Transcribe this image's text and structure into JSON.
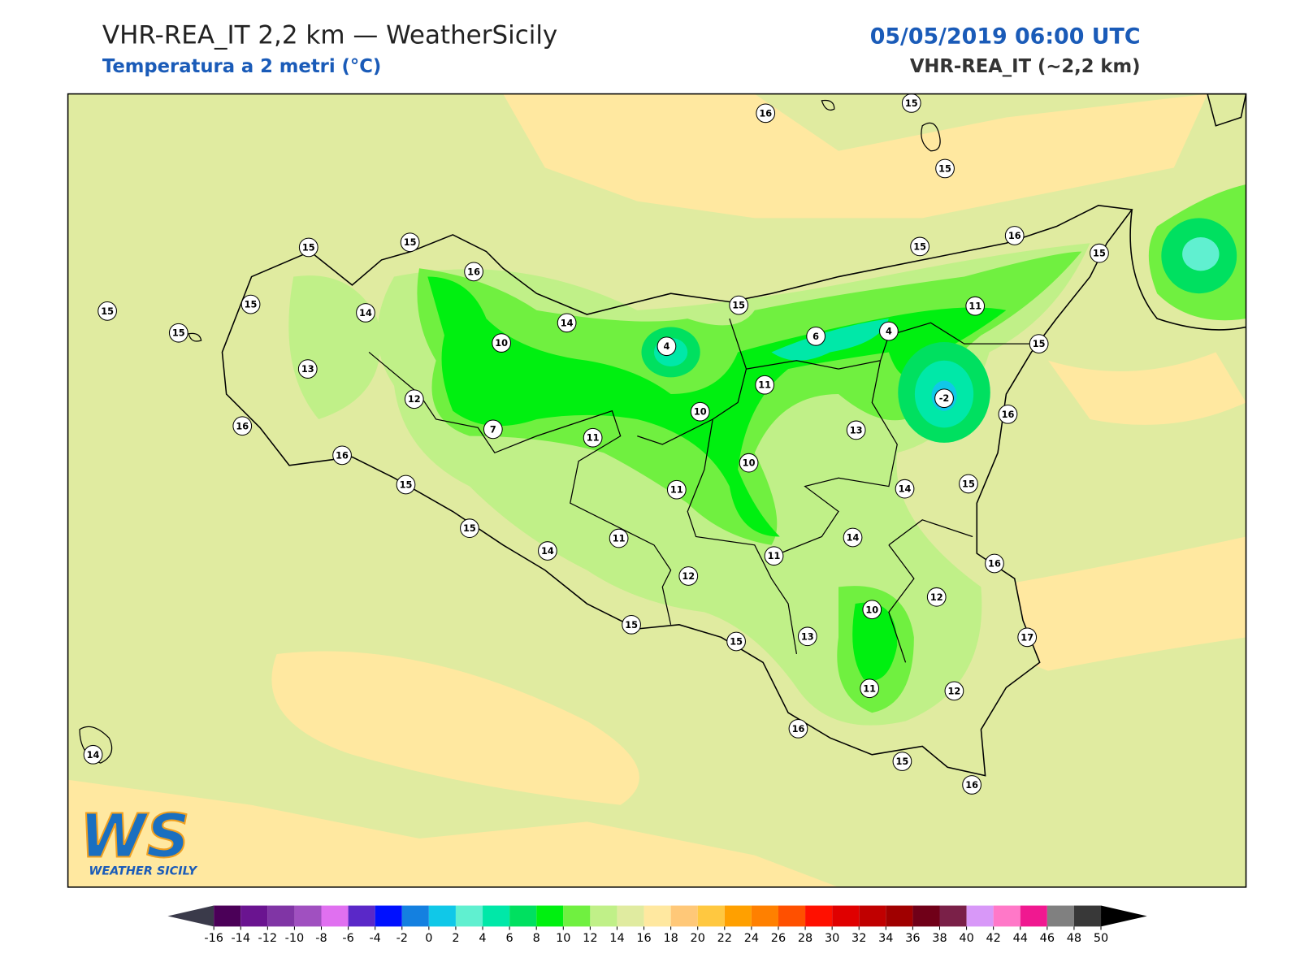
{
  "header": {
    "title": "VHR-REA_IT 2,2 km — WeatherSicily",
    "subtitle": "Temperatura a 2 metri (°C)",
    "datetime": "05/05/2019 06:00 UTC",
    "model": "VHR-REA_IT (~2,2 km)"
  },
  "logo": {
    "letters": "WS",
    "name": "WEATHER SICILY"
  },
  "stations": [
    16,
    15,
    15,
    15,
    15,
    15,
    15,
    15,
    16,
    14,
    13,
    16,
    16,
    12,
    10,
    14,
    7,
    11,
    4,
    10,
    15,
    6,
    4,
    11,
    15,
    16,
    15,
    11,
    15,
    -2,
    16,
    13,
    10,
    11,
    14,
    15,
    15,
    15,
    14,
    11,
    12,
    11,
    14,
    16,
    12,
    10,
    17,
    13,
    15,
    15,
    11,
    12,
    16,
    15,
    16,
    14
  ],
  "colorbar": {
    "ticks": [
      -16,
      -14,
      -12,
      -10,
      -8,
      -6,
      -4,
      -2,
      0,
      2,
      4,
      6,
      8,
      10,
      12,
      14,
      16,
      18,
      20,
      22,
      24,
      26,
      28,
      30,
      32,
      34,
      36,
      38,
      40,
      42,
      44,
      46,
      48,
      50
    ],
    "colors": [
      "#4b0058",
      "#6a1490",
      "#8035a5",
      "#a050c0",
      "#e070f0",
      "#5a28c8",
      "#0010ff",
      "#1480e0",
      "#10c8e8",
      "#60f0d0",
      "#00e8a8",
      "#00e060",
      "#00f010",
      "#70f040",
      "#c0f088",
      "#e0eba0",
      "#ffe8a0",
      "#ffc878",
      "#ffc840",
      "#ffa000",
      "#ff8000",
      "#ff5000",
      "#ff1000",
      "#e00000",
      "#c00000",
      "#a00000",
      "#700018",
      "#7a2048",
      "#d898f8",
      "#ff78c8",
      "#f01890",
      "#808080",
      "#383838"
    ],
    "under_color": "#3a3a4a",
    "over_color": "#000000"
  }
}
